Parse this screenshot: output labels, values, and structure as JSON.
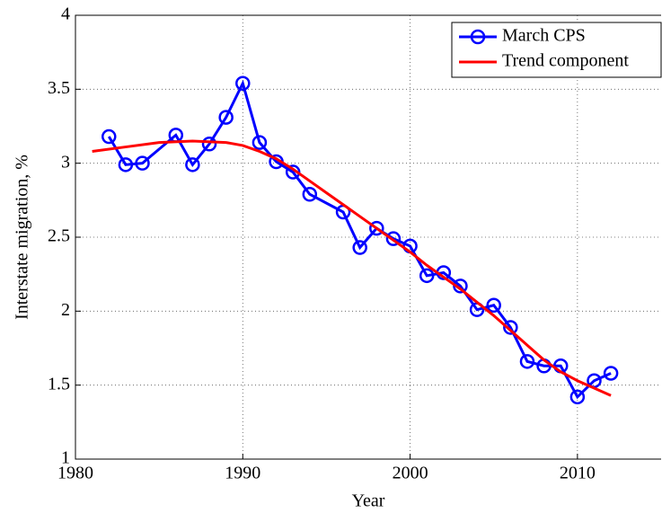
{
  "chart_data": {
    "type": "line",
    "xlabel": "Year",
    "ylabel": "Interstate migration, %",
    "xlim": [
      1980,
      2015
    ],
    "ylim": [
      1,
      4
    ],
    "xticks": [
      1980,
      1990,
      2000,
      2010
    ],
    "yticks": [
      1,
      1.5,
      2,
      2.5,
      3,
      3.5,
      4
    ],
    "grid": true,
    "legend": "upper right",
    "series": [
      {
        "name": "March CPS",
        "color": "#0000ff",
        "marker": "circle",
        "x": [
          1982,
          1983,
          1984,
          1986,
          1987,
          1988,
          1989,
          1990,
          1991,
          1992,
          1993,
          1994,
          1996,
          1997,
          1998,
          1999,
          2000,
          2001,
          2002,
          2003,
          2004,
          2005,
          2006,
          2007,
          2008,
          2009,
          2010,
          2011,
          2012
        ],
        "values": [
          3.18,
          2.99,
          3.0,
          3.19,
          2.99,
          3.13,
          3.31,
          3.54,
          3.14,
          3.01,
          2.94,
          2.79,
          2.67,
          2.43,
          2.56,
          2.49,
          2.44,
          2.24,
          2.26,
          2.17,
          2.01,
          2.04,
          1.89,
          1.66,
          1.63,
          1.63,
          1.42,
          1.53,
          1.58
        ]
      },
      {
        "name": "Trend component",
        "color": "#ff0000",
        "x": [
          1981,
          1983,
          1985,
          1987,
          1989,
          1990,
          1991,
          1992,
          1993,
          1994,
          1995,
          1996,
          1997,
          1998,
          1999,
          2000,
          2001,
          2002,
          2003,
          2004,
          2005,
          2006,
          2007,
          2008,
          2009,
          2010,
          2011,
          2012
        ],
        "values": [
          3.08,
          3.11,
          3.14,
          3.15,
          3.14,
          3.12,
          3.08,
          3.03,
          2.96,
          2.88,
          2.8,
          2.72,
          2.64,
          2.56,
          2.48,
          2.4,
          2.31,
          2.23,
          2.15,
          2.06,
          1.97,
          1.87,
          1.77,
          1.67,
          1.59,
          1.53,
          1.48,
          1.43
        ]
      }
    ]
  }
}
